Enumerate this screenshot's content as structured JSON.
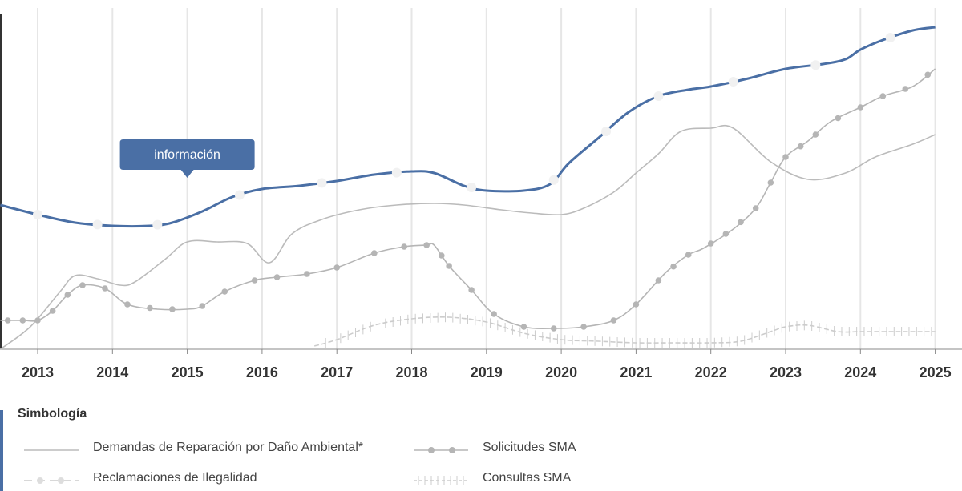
{
  "chart_data": {
    "type": "line",
    "x_ticks": [
      "2013",
      "2014",
      "2015",
      "2016",
      "2017",
      "2018",
      "2019",
      "2020",
      "2021",
      "2022",
      "2023",
      "2024",
      "2025"
    ],
    "annotation": {
      "text": "información",
      "x": 2015.0,
      "y": 53.5
    },
    "grid": "vertical",
    "series": [
      {
        "key": "main",
        "name": "",
        "color": "#4a6fa5",
        "marker": "circle",
        "x": [
          2012.5,
          2013.0,
          2013.5,
          2014.0,
          2014.5,
          2014.8,
          2015.2,
          2015.6,
          2016.0,
          2016.5,
          2017.0,
          2017.5,
          2018.0,
          2018.3,
          2018.7,
          2019.0,
          2019.5,
          2019.85,
          2020.1,
          2020.5,
          2020.9,
          2021.3,
          2021.7,
          2022.0,
          2022.5,
          2023.0,
          2023.5,
          2023.8,
          2024.0,
          2024.3,
          2024.7,
          2025.0
        ],
        "y": [
          45,
          42,
          39.5,
          38.5,
          38.5,
          39.5,
          43,
          47.5,
          50,
          51,
          52.5,
          54.5,
          55.5,
          55,
          51,
          49.5,
          49.5,
          51.5,
          58,
          66,
          74,
          79,
          81,
          82,
          84.5,
          87.5,
          89,
          90.5,
          93.5,
          96.5,
          99.5,
          100.5
        ],
        "markers_x": [
          2013.0,
          2013.8,
          2014.6,
          2015.7,
          2016.8,
          2017.8,
          2018.8,
          2019.9,
          2020.6,
          2021.3,
          2022.3,
          2023.4,
          2024.4
        ]
      },
      {
        "key": "demandas",
        "name": "Demandas de Reparación por Daño Ambiental*",
        "color": "#bbbbbb",
        "marker": "none",
        "x": [
          2012.5,
          2012.9,
          2013.3,
          2013.5,
          2013.8,
          2014.1,
          2014.3,
          2014.7,
          2015.0,
          2015.4,
          2015.8,
          2016.1,
          2016.4,
          2016.8,
          2017.3,
          2017.8,
          2018.3,
          2018.7,
          2019.2,
          2019.6,
          2020.0,
          2020.3,
          2020.7,
          2021.0,
          2021.3,
          2021.6,
          2022.0,
          2022.3,
          2022.8,
          2023.3,
          2023.8,
          2024.2,
          2024.7,
          2025.0
        ],
        "y": [
          0,
          7,
          18,
          23,
          22,
          20,
          21,
          28,
          33.5,
          33.5,
          33,
          27,
          36,
          40.5,
          43.5,
          45,
          45.5,
          45,
          43.5,
          42.5,
          42,
          44,
          49,
          55,
          61,
          68,
          69,
          69,
          58.5,
          53,
          55,
          60,
          64,
          67
        ],
        "markers_x": []
      },
      {
        "key": "solicitudes",
        "name": "Solicitudes SMA",
        "color": "#b5b5b5",
        "marker": "circle",
        "x": [
          2012.5,
          2012.8,
          2013.0,
          2013.2,
          2013.4,
          2013.6,
          2013.9,
          2014.2,
          2014.6,
          2015.0,
          2015.2,
          2015.5,
          2015.9,
          2016.2,
          2016.6,
          2017.0,
          2017.5,
          2017.9,
          2018.2,
          2018.3,
          2018.5,
          2018.8,
          2019.1,
          2019.5,
          2019.9,
          2020.3,
          2020.7,
          2021.0,
          2021.4,
          2021.7,
          2021.9,
          2022.3,
          2022.6,
          2022.8,
          2023.0,
          2023.3,
          2023.6,
          2024.0,
          2024.3,
          2024.7,
          2025.0
        ],
        "y": [
          9,
          9,
          9,
          12,
          17,
          20,
          19,
          14,
          12.5,
          12.5,
          13.5,
          18,
          21.5,
          22.5,
          23.5,
          25.5,
          30,
          32,
          32.5,
          32.5,
          26,
          18.5,
          11,
          7,
          6.5,
          7,
          9,
          14,
          24,
          29.5,
          31.5,
          37.5,
          44,
          52,
          60,
          65,
          71,
          75.5,
          79,
          82,
          87.5
        ],
        "markers_x": [
          2012.6,
          2012.8,
          2013.0,
          2013.2,
          2013.4,
          2013.6,
          2013.9,
          2014.2,
          2014.5,
          2014.8,
          2015.2,
          2015.5,
          2015.9,
          2016.2,
          2016.6,
          2017.0,
          2017.5,
          2017.9,
          2018.2,
          2018.4,
          2018.5,
          2018.8,
          2019.1,
          2019.5,
          2019.9,
          2020.3,
          2020.7,
          2021.0,
          2021.3,
          2021.5,
          2021.7,
          2022.0,
          2022.2,
          2022.4,
          2022.6,
          2022.8,
          2023.0,
          2023.2,
          2023.4,
          2023.7,
          2024.0,
          2024.3,
          2024.6,
          2024.9
        ]
      },
      {
        "key": "consultas",
        "name": "Consultas SMA",
        "color": "#cccccc",
        "marker": "tick",
        "x": [
          2016.7,
          2017.0,
          2017.5,
          2018.0,
          2018.5,
          2019.0,
          2019.5,
          2020.0,
          2020.5,
          2021.0,
          2021.5,
          2022.0,
          2022.4,
          2022.8,
          2023.0,
          2023.3,
          2023.7,
          2024.0,
          2024.5,
          2025.0
        ],
        "y": [
          1,
          3,
          7.5,
          9.5,
          10,
          8.5,
          5,
          3,
          2.5,
          2,
          2,
          2,
          2.5,
          5.5,
          7,
          7.5,
          5.5,
          5.5,
          5.5,
          5.5
        ],
        "markers_x": []
      }
    ]
  },
  "legend": {
    "title": "Simbología",
    "items": [
      {
        "label": "Demandas de Reparación por Daño Ambiental*",
        "style": "line",
        "color": "#bbbbbb"
      },
      {
        "label": "Solicitudes SMA",
        "style": "dots",
        "color": "#b5b5b5"
      },
      {
        "label": "Reclamaciones de Ilegalidad",
        "style": "dashdot",
        "color": "#cccccc"
      },
      {
        "label": "Consultas SMA",
        "style": "ticks",
        "color": "#cccccc"
      }
    ]
  }
}
